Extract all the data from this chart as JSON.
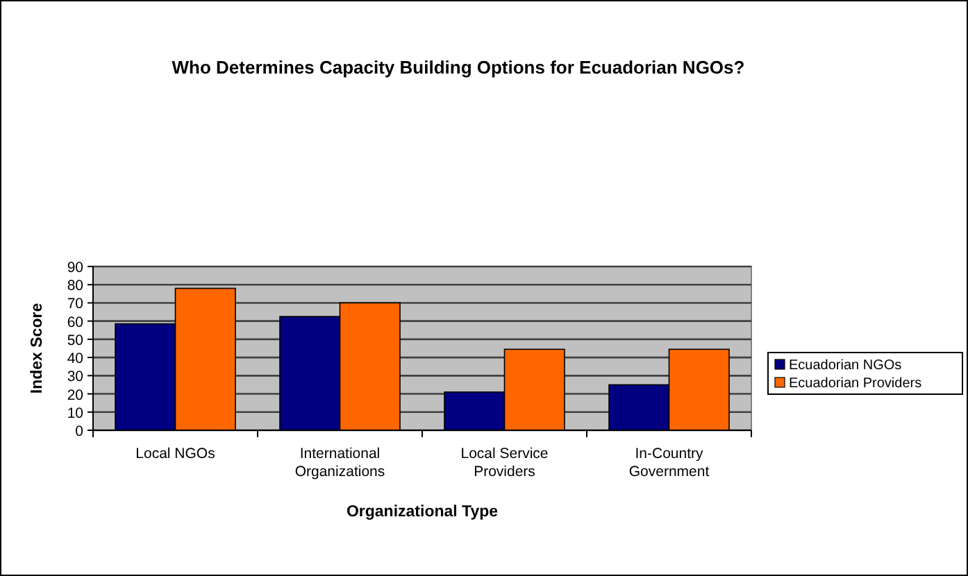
{
  "chart_data": {
    "type": "bar",
    "title": "Who Determines Capacity Building Options for Ecuadorian NGOs?",
    "xlabel": "Organizational Type",
    "ylabel": "Index Score",
    "categories": [
      "Local NGOs",
      "International Organizations",
      "Local Service Providers",
      "In-Country Government"
    ],
    "series": [
      {
        "name": "Ecuadorian NGOs",
        "color": "#000080",
        "values": [
          58.5,
          62.5,
          21,
          25
        ]
      },
      {
        "name": "Ecuadorian Providers",
        "color": "#ff6600",
        "values": [
          78,
          70,
          44.5,
          44.5
        ]
      }
    ],
    "ylim": [
      0,
      90
    ],
    "yticks": [
      0,
      10,
      20,
      30,
      40,
      50,
      60,
      70,
      80,
      90
    ],
    "grid": "y",
    "legend": "right"
  }
}
